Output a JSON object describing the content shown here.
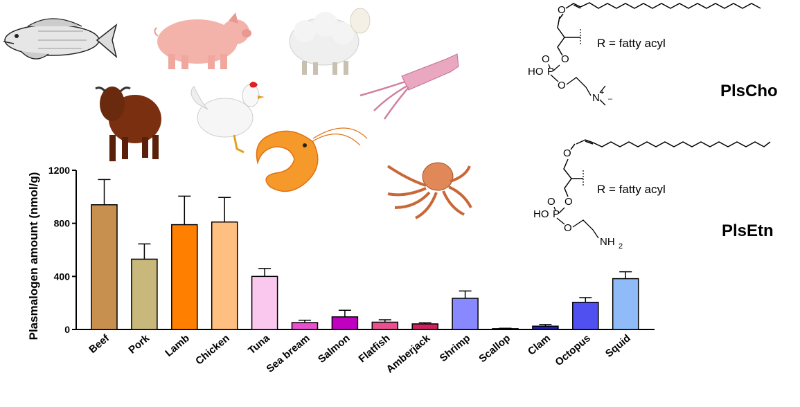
{
  "chart_data": {
    "type": "bar",
    "categories": [
      "Beef",
      "Pork",
      "Lamb",
      "Chicken",
      "Tuna",
      "Sea bream",
      "Salmon",
      "Flatfish",
      "Amberjack",
      "Shrimp",
      "Scallop",
      "Clam",
      "Octopus",
      "Squid"
    ],
    "values": [
      940,
      530,
      790,
      810,
      400,
      52,
      95,
      55,
      42,
      235,
      6,
      25,
      205,
      383
    ],
    "errors": [
      190,
      115,
      215,
      185,
      60,
      18,
      50,
      18,
      8,
      55,
      3,
      12,
      35,
      52
    ],
    "colors": [
      "#c8904e",
      "#c8b87c",
      "#ff8000",
      "#ffbf80",
      "#fac8ee",
      "#e850d0",
      "#c000c0",
      "#ea5090",
      "#d02060",
      "#8888ff",
      "#00007a",
      "#2020b0",
      "#5050f0",
      "#8fbcf8"
    ],
    "ylabel": "Plasmalogen amount (nmol/g)",
    "xlabel": "",
    "ylim": [
      0,
      1200
    ],
    "yticks": [
      0,
      400,
      800,
      1200
    ],
    "grid": false
  },
  "illustrations": {
    "icons": [
      "fish-icon",
      "pig-icon",
      "sheep-icon",
      "bull-icon",
      "chicken-icon",
      "shrimp-icon",
      "squid-icon",
      "octopus-icon"
    ]
  },
  "structures": {
    "plscho": {
      "name": "PlsCho",
      "r_label": "R = fatty acyl",
      "head_oh": "HO",
      "head_p": "P",
      "head_o": "O",
      "head_n": "N",
      "head_plus": "+",
      "head_minus": "–"
    },
    "plsetn": {
      "name": "PlsEtn",
      "r_label": "R = fatty acyl",
      "head_oh": "HO",
      "head_p": "P",
      "head_o": "O",
      "head_nh": "NH",
      "head_sub": "2"
    }
  }
}
